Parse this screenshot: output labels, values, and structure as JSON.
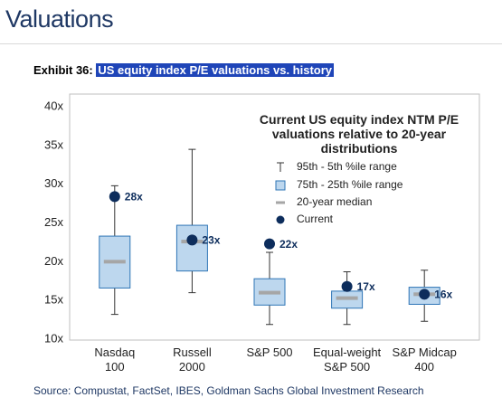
{
  "page": {
    "title": "Valuations"
  },
  "chart_data": {
    "type": "box",
    "exhibit": "Exhibit 36:",
    "title": "US equity index P/E valuations vs. history",
    "legend_title": "Current US equity index NTM P/E valuations relative to 20-year distributions",
    "source": "Source: Compustat, FactSet, IBES, Goldman Sachs Global Investment Research",
    "categories": [
      "Nasdaq\n100",
      "Russell\n2000",
      "S&P 500",
      "Equal-weight\nS&P 500",
      "S&P Midcap\n400"
    ],
    "series": [
      {
        "name": "95th - 5th %ile range",
        "color": "#333333",
        "high": [
          29.8,
          34.5,
          21.2,
          18.7,
          18.9
        ],
        "low": [
          13.2,
          16.0,
          11.9,
          11.9,
          12.3
        ]
      },
      {
        "name": "75th - 25th %ile range",
        "color": "#bdd7ee",
        "high": [
          23.3,
          24.7,
          17.8,
          16.2,
          16.7
        ],
        "low": [
          16.6,
          18.8,
          14.4,
          14.0,
          14.5
        ]
      },
      {
        "name": "20-year median",
        "color": "#a6a6a6",
        "values": [
          20.0,
          22.6,
          16.0,
          15.3,
          15.8
        ]
      },
      {
        "name": "Current",
        "color": "#0d2d5c",
        "values": [
          28.4,
          22.8,
          22.3,
          16.8,
          15.8
        ],
        "value_labels": [
          "28x",
          "23x",
          "22x",
          "17x",
          "16x"
        ]
      }
    ],
    "ylim": [
      10,
      40
    ],
    "yticks": [
      {
        "value": 10,
        "label": "10x"
      },
      {
        "value": 15,
        "label": "15x"
      },
      {
        "value": 20,
        "label": "20x"
      },
      {
        "value": 25,
        "label": "25x"
      },
      {
        "value": 30,
        "label": "30x"
      },
      {
        "value": 35,
        "label": "35x"
      },
      {
        "value": 40,
        "label": "40x"
      }
    ]
  }
}
